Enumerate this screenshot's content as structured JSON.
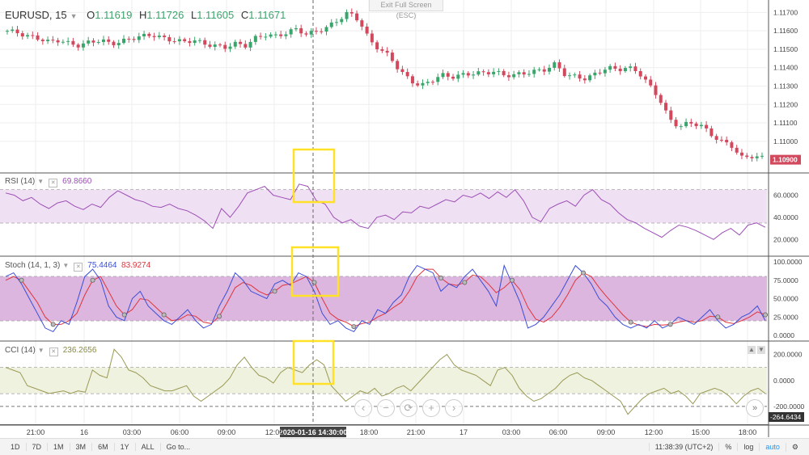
{
  "header": {
    "symbol": "EURUSD",
    "interval": "15",
    "open_label": "O",
    "open": "1.11619",
    "high_label": "H",
    "high": "1.11726",
    "low_label": "L",
    "low": "1.11605",
    "close_label": "C",
    "close": "1.11671",
    "exit_fullscreen": "Exit Full Screen (ESC)"
  },
  "indicators": {
    "rsi": {
      "name": "RSI (14)",
      "value": "69.8660"
    },
    "stoch": {
      "name": "Stoch (14, 1, 3)",
      "k_value": "75.4464",
      "d_value": "83.9274"
    },
    "cci": {
      "name": "CCI (14)",
      "value": "236.2656"
    }
  },
  "colors": {
    "up": "#3aa56b",
    "down": "#d2485c",
    "rsi": "#9c4fb5",
    "stoch_k": "#3b4ed8",
    "stoch_d": "#e0343c",
    "cci": "#9a9a55",
    "highlight": "#ffe227",
    "rsi_band": "#f0e0f3",
    "stoch_band": "#dcb6de",
    "cci_band": "#f0f2e0"
  },
  "chart_data": [
    {
      "type": "candlestick",
      "title": "EURUSD, 15",
      "ylim": [
        1.1085,
        1.1175
      ],
      "price_ticks": [
        "1.11700",
        "1.11600",
        "1.11500",
        "1.11400",
        "1.11300",
        "1.11200",
        "1.11100",
        "1.11000"
      ],
      "last_price": "1.10900",
      "close_path": [
        1.116,
        1.1159,
        1.1157,
        1.1156,
        1.1154,
        1.1155,
        1.1153,
        1.1152,
        1.1154,
        1.1155,
        1.1153,
        1.1154,
        1.1156,
        1.1157,
        1.1158,
        1.1156,
        1.1155,
        1.1154,
        1.1155,
        1.1153,
        1.1152,
        1.1151,
        1.1153,
        1.1152,
        1.1156,
        1.1158,
        1.1157,
        1.1159,
        1.1161,
        1.1158,
        1.116,
        1.1162,
        1.1166,
        1.117,
        1.1166,
        1.1155,
        1.115,
        1.1146,
        1.1138,
        1.1133,
        1.113,
        1.1133,
        1.1136,
        1.1135,
        1.1136,
        1.1137,
        1.1137,
        1.1138,
        1.1136,
        1.1136,
        1.1137,
        1.1138,
        1.1139,
        1.1142,
        1.1136,
        1.1135,
        1.1134,
        1.1137,
        1.114,
        1.1139,
        1.114,
        1.1138,
        1.1131,
        1.1124,
        1.1112,
        1.1108,
        1.111,
        1.1109,
        1.1104,
        1.11,
        1.1098,
        1.1091,
        1.1092,
        1.1091
      ]
    },
    {
      "type": "line",
      "name": "RSI (14)",
      "ylim": [
        10,
        75
      ],
      "ticks": [
        "60.0000",
        "40.0000",
        "20.0000"
      ],
      "bands": [
        65,
        35
      ],
      "values": [
        62,
        60,
        55,
        58,
        52,
        48,
        53,
        55,
        50,
        47,
        52,
        49,
        58,
        64,
        60,
        56,
        54,
        50,
        49,
        52,
        48,
        46,
        42,
        37,
        30,
        48,
        40,
        50,
        62,
        65,
        68,
        60,
        58,
        56,
        70,
        68,
        55,
        52,
        40,
        35,
        38,
        32,
        30,
        40,
        42,
        38,
        45,
        44,
        50,
        48,
        52,
        56,
        54,
        60,
        58,
        62,
        57,
        63,
        58,
        65,
        55,
        40,
        36,
        48,
        52,
        55,
        50,
        60,
        65,
        56,
        52,
        44,
        38,
        35,
        30,
        26,
        22,
        28,
        33,
        31,
        28,
        24,
        20,
        26,
        30,
        24,
        33,
        35,
        31
      ]
    },
    {
      "type": "line",
      "name": "Stoch (14, 1, 3)",
      "ylim": [
        0,
        100
      ],
      "ticks": [
        "100.0000",
        "75.0000",
        "50.0000",
        "25.0000",
        "0.0000"
      ],
      "bands": [
        80,
        20
      ],
      "k_values": [
        80,
        85,
        70,
        50,
        30,
        10,
        5,
        20,
        15,
        45,
        80,
        90,
        75,
        40,
        25,
        20,
        50,
        60,
        40,
        30,
        20,
        15,
        25,
        35,
        20,
        10,
        15,
        40,
        60,
        85,
        75,
        60,
        55,
        50,
        70,
        75,
        68,
        85,
        80,
        60,
        30,
        15,
        20,
        10,
        5,
        20,
        15,
        35,
        30,
        45,
        55,
        80,
        95,
        90,
        85,
        60,
        70,
        65,
        80,
        90,
        75,
        60,
        40,
        95,
        70,
        45,
        10,
        15,
        25,
        40,
        55,
        75,
        95,
        85,
        70,
        50,
        40,
        25,
        15,
        10,
        15,
        10,
        20,
        10,
        15,
        25,
        20,
        15,
        25,
        35,
        20,
        10,
        15,
        25,
        30,
        40,
        20
      ],
      "d_values": [
        75,
        80,
        75,
        60,
        45,
        25,
        15,
        15,
        20,
        30,
        55,
        75,
        80,
        60,
        40,
        28,
        35,
        50,
        48,
        38,
        28,
        20,
        22,
        28,
        26,
        18,
        16,
        26,
        45,
        65,
        72,
        68,
        60,
        55,
        60,
        68,
        70,
        75,
        80,
        72,
        50,
        30,
        22,
        18,
        12,
        16,
        18,
        25,
        30,
        38,
        45,
        60,
        80,
        90,
        90,
        78,
        70,
        68,
        72,
        82,
        80,
        70,
        58,
        65,
        75,
        62,
        38,
        22,
        18,
        25,
        38,
        55,
        75,
        85,
        80,
        65,
        52,
        40,
        28,
        18,
        14,
        12,
        15,
        14,
        15,
        18,
        20,
        18,
        20,
        26,
        25,
        18,
        16,
        20,
        25,
        32,
        28
      ]
    },
    {
      "type": "line",
      "name": "CCI (14)",
      "ylim": [
        -300,
        260
      ],
      "ticks": [
        "200.0000",
        "0.0000",
        "-200.0000"
      ],
      "bands": [
        100,
        -100
      ],
      "last_value": "-264.6434",
      "values": [
        100,
        80,
        60,
        -40,
        -60,
        -80,
        -100,
        -90,
        -80,
        -100,
        -80,
        -90,
        80,
        40,
        20,
        240,
        180,
        80,
        60,
        20,
        -40,
        -60,
        -80,
        -80,
        -60,
        -40,
        -120,
        -160,
        -120,
        -80,
        -40,
        20,
        120,
        180,
        100,
        40,
        20,
        -20,
        60,
        100,
        80,
        60,
        120,
        160,
        120,
        -40,
        -100,
        -160,
        -120,
        -80,
        -100,
        -60,
        -120,
        -100,
        -60,
        -40,
        -80,
        -20,
        40,
        100,
        160,
        200,
        120,
        80,
        60,
        40,
        0,
        -40,
        80,
        100,
        40,
        -60,
        -120,
        -160,
        -140,
        -100,
        -60,
        0,
        40,
        60,
        20,
        0,
        -40,
        -80,
        -120,
        -160,
        -260,
        -200,
        -140,
        -100,
        -80,
        -60,
        -100,
        -80,
        -120,
        -180,
        -100,
        -80,
        -60,
        -80,
        -120,
        -180,
        -120,
        -80,
        -60,
        -100
      ]
    }
  ],
  "x_axis": {
    "ticks": [
      "21:00",
      "16",
      "03:00",
      "06:00",
      "09:00",
      "12:00",
      "18:00",
      "21:00",
      "17",
      "03:00",
      "06:00",
      "09:00",
      "12:00",
      "15:00",
      "18:00"
    ],
    "crosshair_label": "2020-01-16 14:30:00"
  },
  "toolbar": {
    "items": [
      "1D",
      "7D",
      "1M",
      "3M",
      "6M",
      "1Y",
      "ALL",
      "Go to..."
    ],
    "time": "11:38:39 (UTC+2)",
    "percent": "%",
    "log": "log",
    "auto": "auto"
  },
  "controls": {
    "zoom_out": "⊖",
    "zoom_minus": "−",
    "reset": "⟳",
    "zoom_plus": "+",
    "scroll_right": "›",
    "scroll_end": "»"
  }
}
